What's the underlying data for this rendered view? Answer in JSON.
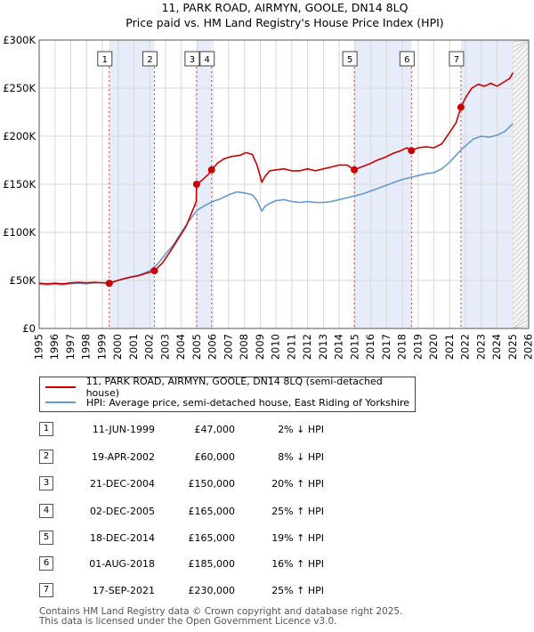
{
  "chart_data": {
    "type": "line",
    "title": "11, PARK ROAD, AIRMYN, GOOLE, DN14 8LQ",
    "subtitle": "Price paid vs. HM Land Registry's House Price Index (HPI)",
    "x_range": [
      1995,
      2026
    ],
    "ylim": [
      0,
      300000
    ],
    "y_ticks": [
      0,
      50000,
      100000,
      150000,
      200000,
      250000,
      300000
    ],
    "y_tick_labels": [
      "£0",
      "£50K",
      "£100K",
      "£150K",
      "£200K",
      "£250K",
      "£300K"
    ],
    "x_ticks": [
      1995,
      1996,
      1997,
      1998,
      1999,
      2000,
      2001,
      2002,
      2003,
      2004,
      2005,
      2006,
      2007,
      2008,
      2009,
      2010,
      2011,
      2012,
      2013,
      2014,
      2015,
      2016,
      2017,
      2018,
      2019,
      2020,
      2021,
      2022,
      2023,
      2024,
      2025,
      2026
    ],
    "x_tick_labels": [
      "1995",
      "1996",
      "1997",
      "1998",
      "1999",
      "2000",
      "2001",
      "2002",
      "2003",
      "2004",
      "2005",
      "2006",
      "2007",
      "2008",
      "2009",
      "2010",
      "2011",
      "2012",
      "2013",
      "2014",
      "2015",
      "2016",
      "2017",
      "2018",
      "2019",
      "2020",
      "2021",
      "2022",
      "2023",
      "2024",
      "2025",
      "2026"
    ],
    "grid": true,
    "shaded_spans": [
      [
        1999.44,
        2002.3
      ],
      [
        2004.97,
        2005.92
      ],
      [
        2014.96,
        2018.58
      ],
      [
        2021.71,
        2025.0
      ]
    ],
    "forecast_start": 2025.0,
    "series": [
      {
        "name": "11, PARK ROAD, AIRMYN, GOOLE, DN14 8LQ (semi-detached house)",
        "color": "#cc0000",
        "x": [
          1995,
          1995.5,
          1996,
          1996.5,
          1997,
          1997.5,
          1998,
          1998.5,
          1999,
          1999.44,
          1999.8,
          2000.3,
          2000.8,
          2001.3,
          2001.8,
          2002.3,
          2002.8,
          2003.3,
          2003.8,
          2004.3,
          2004.7,
          2004.95,
          2004.97,
          2005.3,
          2005.7,
          2005.92,
          2006.3,
          2006.7,
          2007.2,
          2007.7,
          2008.1,
          2008.5,
          2008.8,
          2009.1,
          2009.3,
          2009.6,
          2010,
          2010.5,
          2011,
          2011.5,
          2012,
          2012.5,
          2013,
          2013.5,
          2014,
          2014.5,
          2014.96,
          2015.4,
          2015.9,
          2016.4,
          2016.9,
          2017.4,
          2017.9,
          2018.3,
          2018.58,
          2019,
          2019.5,
          2020,
          2020.5,
          2021,
          2021.4,
          2021.71,
          2022,
          2022.4,
          2022.8,
          2023.2,
          2023.6,
          2024,
          2024.4,
          2024.8,
          2025.0
        ],
        "values": [
          47000,
          46500,
          47000,
          46500,
          47500,
          48000,
          47500,
          48000,
          47500,
          47000,
          49000,
          51500,
          53500,
          55000,
          57500,
          60000,
          68000,
          80000,
          93000,
          106000,
          122000,
          132000,
          150000,
          154000,
          160000,
          165000,
          172000,
          176500,
          179000,
          180000,
          183000,
          181000,
          170000,
          152000,
          158000,
          164000,
          165000,
          166000,
          164000,
          164000,
          166000,
          164000,
          166000,
          168000,
          170000,
          170000,
          165000,
          168000,
          171000,
          175000,
          178000,
          182000,
          185000,
          188000,
          185000,
          188000,
          189000,
          188000,
          192000,
          204000,
          214000,
          230000,
          240000,
          250000,
          254000,
          252000,
          255000,
          252000,
          256000,
          260000,
          266000
        ]
      },
      {
        "name": "HPI: Average price, semi-detached house, East Riding of Yorkshire",
        "color": "#6699cc",
        "x": [
          1995,
          1995.5,
          1996,
          1996.5,
          1997,
          1997.5,
          1998,
          1998.5,
          1999,
          1999.5,
          2000,
          2000.5,
          2001,
          2001.5,
          2002,
          2002.5,
          2003,
          2003.5,
          2004,
          2004.5,
          2005,
          2005.5,
          2006,
          2006.5,
          2007,
          2007.5,
          2008,
          2008.5,
          2008.8,
          2009.1,
          2009.3,
          2009.6,
          2010,
          2010.5,
          2011,
          2011.5,
          2012,
          2012.5,
          2013,
          2013.5,
          2014,
          2014.5,
          2015,
          2015.5,
          2016,
          2016.5,
          2017,
          2017.5,
          2018,
          2018.5,
          2019,
          2019.5,
          2020,
          2020.5,
          2021,
          2021.5,
          2022,
          2022.5,
          2023,
          2023.5,
          2024,
          2024.5,
          2025.0
        ],
        "values": [
          46000,
          45500,
          46000,
          45500,
          46500,
          47000,
          46500,
          47500,
          47500,
          48000,
          50000,
          52000,
          54000,
          56500,
          60000,
          67000,
          77000,
          87000,
          100000,
          112000,
          123000,
          128000,
          132000,
          135000,
          139000,
          142000,
          141000,
          139000,
          133000,
          122000,
          127000,
          130000,
          133000,
          134000,
          132000,
          131000,
          132000,
          131000,
          131000,
          132000,
          134000,
          136000,
          138000,
          140000,
          143000,
          146000,
          149000,
          152000,
          155000,
          157000,
          159000,
          161000,
          162000,
          166000,
          173000,
          182000,
          190000,
          197000,
          200000,
          199000,
          201000,
          205000,
          213000
        ]
      }
    ],
    "sales": [
      {
        "n": "1",
        "x": 1999.44,
        "price": 47000
      },
      {
        "n": "2",
        "x": 2002.3,
        "price": 60000
      },
      {
        "n": "3",
        "x": 2004.97,
        "price": 150000
      },
      {
        "n": "4",
        "x": 2005.92,
        "price": 165000
      },
      {
        "n": "5",
        "x": 2014.96,
        "price": 165000
      },
      {
        "n": "6",
        "x": 2018.58,
        "price": 185000
      },
      {
        "n": "7",
        "x": 2021.71,
        "price": 230000
      }
    ]
  },
  "legend": {
    "property_label": "11, PARK ROAD, AIRMYN, GOOLE, DN14 8LQ (semi-detached house)",
    "hpi_label": "HPI: Average price, semi-detached house, East Riding of Yorkshire"
  },
  "transactions": [
    {
      "n": "1",
      "date": "11-JUN-1999",
      "price": "£47,000",
      "hpi": "2% ↓ HPI"
    },
    {
      "n": "2",
      "date": "19-APR-2002",
      "price": "£60,000",
      "hpi": "8% ↓ HPI"
    },
    {
      "n": "3",
      "date": "21-DEC-2004",
      "price": "£150,000",
      "hpi": "20% ↑ HPI"
    },
    {
      "n": "4",
      "date": "02-DEC-2005",
      "price": "£165,000",
      "hpi": "25% ↑ HPI"
    },
    {
      "n": "5",
      "date": "18-DEC-2014",
      "price": "£165,000",
      "hpi": "19% ↑ HPI"
    },
    {
      "n": "6",
      "date": "01-AUG-2018",
      "price": "£185,000",
      "hpi": "16% ↑ HPI"
    },
    {
      "n": "7",
      "date": "17-SEP-2021",
      "price": "£230,000",
      "hpi": "25% ↑ HPI"
    }
  ],
  "footer": {
    "line1": "Contains HM Land Registry data © Crown copyright and database right 2025.",
    "line2": "This data is licensed under the Open Government Licence v3.0."
  }
}
